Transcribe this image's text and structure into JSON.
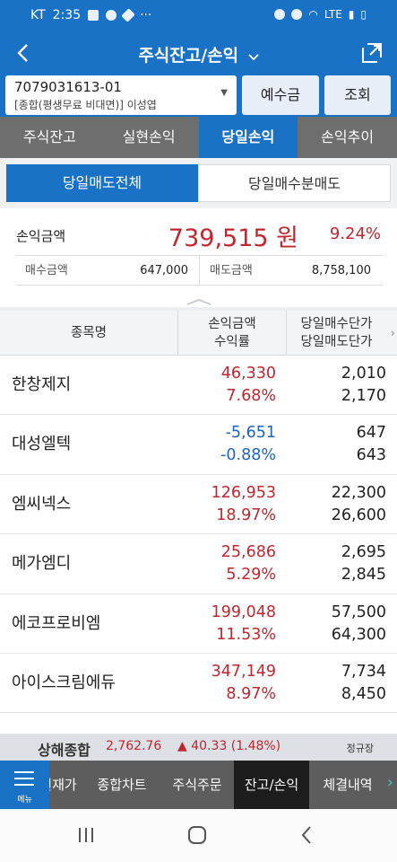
{
  "status_bar": {
    "time": "2:35",
    "carrier": "KT",
    "signal": "LTE"
  },
  "header": {
    "title": "주식잔고/손익",
    "back_label": "<",
    "title_chevron": "⌄"
  },
  "account": {
    "number": "7079031613-01",
    "description": "[종합(평생무료 비대면)] 이성엽",
    "deposit_button": "예수금",
    "query_button": "조회"
  },
  "main_tabs": [
    "주식잔고",
    "실현손익",
    "당일손익",
    "손익추이"
  ],
  "sub_tabs": [
    "당일매도전체",
    "당일매수분매도"
  ],
  "summary": {
    "pl_label": "손익금액",
    "pl_amount": "739,515 원",
    "pl_rate": "9.24%",
    "buy_label": "매수금액",
    "buy_value": "647,000",
    "sell_label": "매도금액",
    "sell_value": "8,758,100"
  },
  "table": {
    "col_name": "종목명",
    "col_pl_1": "손익금액",
    "col_pl_2": "수익률",
    "col_price_1": "당일매수단가",
    "col_price_2": "당일매도단가",
    "rows": [
      {
        "name": "한창제지",
        "pl": "46,330",
        "rate": "7.68%",
        "buy": "2,010",
        "sell": "2,170",
        "dir": "up"
      },
      {
        "name": "대성엘텍",
        "pl": "-5,651",
        "rate": "-0.88%",
        "buy": "647",
        "sell": "643",
        "dir": "down"
      },
      {
        "name": "엠씨넥스",
        "pl": "126,953",
        "rate": "18.97%",
        "buy": "22,300",
        "sell": "26,600",
        "dir": "up"
      },
      {
        "name": "메가엠디",
        "pl": "25,686",
        "rate": "5.29%",
        "buy": "2,695",
        "sell": "2,845",
        "dir": "up"
      },
      {
        "name": "에코프로비엠",
        "pl": "199,048",
        "rate": "11.53%",
        "buy": "57,500",
        "sell": "64,300",
        "dir": "up"
      },
      {
        "name": "아이스크림에듀",
        "pl": "347,149",
        "rate": "8.97%",
        "buy": "7,734",
        "sell": "8,450",
        "dir": "up"
      }
    ]
  },
  "ticker": {
    "name": "상해종합",
    "index": "2,762.76",
    "change": "▲ 40.33 (1.48%)",
    "market": "정규장"
  },
  "bottom_nav": {
    "menu_label": "메뉴",
    "items": [
      "현재가",
      "종합차트",
      "주식주문",
      "잔고/손익",
      "체결내역"
    ]
  },
  "colors": {
    "brand_blue": "#1a72c7",
    "up_red": "#c2262e",
    "down_blue": "#1b64c4"
  }
}
